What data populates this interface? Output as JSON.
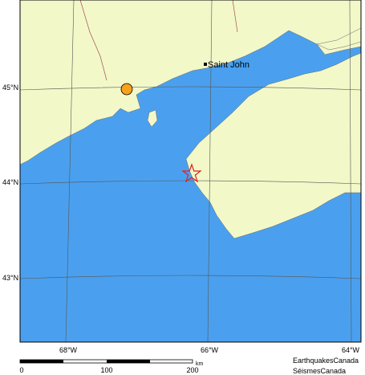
{
  "map": {
    "places": [
      {
        "label": "Saint John"
      }
    ],
    "lat_labels": [
      "45°N",
      "44°N",
      "43°N"
    ],
    "lon_labels": [
      "68°W",
      "66°W",
      "64°W"
    ],
    "scale": {
      "labels": [
        "0",
        "100",
        "200"
      ],
      "unit": "km"
    },
    "credits": [
      "EarthquakesCanada",
      "SéismesCanada"
    ]
  }
}
